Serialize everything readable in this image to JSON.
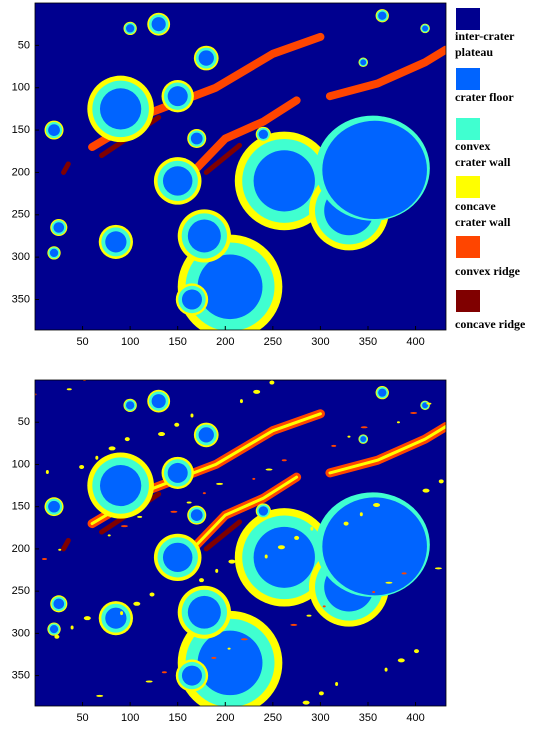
{
  "panels": [
    {
      "xlim": [
        0,
        432
      ],
      "ylim": [
        0,
        386
      ],
      "xticks": [
        50,
        100,
        150,
        200,
        250,
        300,
        350,
        400
      ],
      "yticks": [
        50,
        100,
        150,
        200,
        250,
        300,
        350
      ]
    },
    {
      "xlim": [
        0,
        432
      ],
      "ylim": [
        0,
        386
      ],
      "xticks": [
        50,
        100,
        150,
        200,
        250,
        300,
        350,
        400
      ],
      "yticks": [
        50,
        100,
        150,
        200,
        250,
        300,
        350
      ]
    }
  ],
  "legend": [
    {
      "label": [
        "inter-crater",
        "plateau"
      ],
      "color": "#00008f"
    },
    {
      "label": [
        "crater floor"
      ],
      "color": "#0064ff"
    },
    {
      "label": [
        "convex",
        "crater wall"
      ],
      "color": "#40ffd0"
    },
    {
      "label": [
        "concave",
        "crater wall"
      ],
      "color": "#ffff00"
    },
    {
      "label": [
        "convex ridge"
      ],
      "color": "#ff4500"
    },
    {
      "label": [
        "concave ridge"
      ],
      "color": "#800000"
    }
  ]
}
